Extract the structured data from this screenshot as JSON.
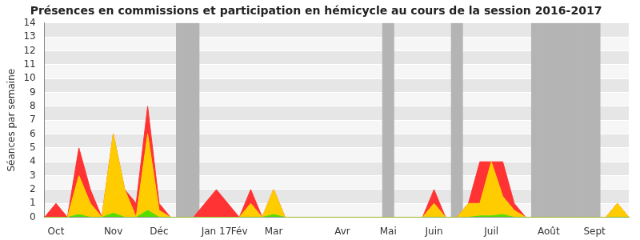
{
  "chart_data": {
    "type": "area",
    "title": "Présences en commissions et participation en hémicycle au cours de la session 2016-2017",
    "y_label": "Séances par semaine",
    "categories": [
      null,
      "Oct",
      null,
      null,
      null,
      null,
      "Nov",
      null,
      null,
      null,
      "Déc",
      null,
      null,
      null,
      null,
      "Jan 17",
      null,
      "Fév",
      null,
      null,
      "Mar",
      null,
      null,
      null,
      null,
      null,
      "Avr",
      null,
      null,
      null,
      "Mai",
      null,
      null,
      null,
      "Juin",
      null,
      null,
      null,
      null,
      "Juil",
      null,
      null,
      null,
      null,
      "Août",
      null,
      null,
      null,
      "Sept",
      null,
      null,
      null
    ],
    "series": [
      {
        "color": "#55dd00",
        "values": [
          0,
          0,
          0,
          0.2,
          0,
          0,
          0.3,
          0,
          0,
          0.5,
          0,
          0,
          0,
          0,
          0,
          0,
          0,
          0,
          0,
          0,
          0.2,
          0,
          0,
          0,
          0,
          0,
          0,
          0,
          0,
          0,
          0,
          0,
          0,
          0,
          0,
          0,
          0,
          0,
          0.1,
          0.1,
          0.2,
          0,
          0,
          0,
          0,
          0,
          0,
          0,
          0,
          0,
          0,
          0
        ]
      },
      {
        "color": "#ffcc00",
        "values": [
          0,
          0,
          0,
          2.8,
          1,
          0,
          5.7,
          2,
          0,
          5.5,
          0.5,
          0,
          0,
          0,
          0,
          0,
          0,
          0,
          1,
          0,
          1.8,
          0,
          0,
          0,
          0,
          0,
          0,
          0,
          0,
          0,
          0,
          0,
          0,
          0,
          1,
          0,
          0,
          1,
          0.9,
          3.9,
          1.3,
          0.5,
          0,
          0,
          0,
          0,
          0,
          0,
          0,
          0,
          1,
          0
        ]
      },
      {
        "color": "#ff3333",
        "values": [
          0,
          1,
          0,
          2,
          1,
          0,
          0,
          0,
          1,
          2,
          0.5,
          0,
          0,
          0,
          1,
          2,
          1,
          0,
          1,
          0,
          0,
          0,
          0,
          0,
          0,
          0,
          0,
          0,
          0,
          0,
          0,
          0,
          0,
          0,
          1,
          0,
          0,
          0,
          3,
          0,
          2.5,
          0.5,
          0,
          0,
          0,
          0,
          0,
          0,
          0,
          0,
          0,
          0
        ]
      },
      {
        "type": "bar",
        "color": "#b4b4b4",
        "values": [
          null,
          null,
          null,
          null,
          null,
          null,
          null,
          null,
          null,
          null,
          null,
          null,
          14,
          14,
          null,
          null,
          null,
          null,
          null,
          null,
          null,
          null,
          null,
          null,
          null,
          null,
          null,
          null,
          null,
          null,
          14,
          null,
          null,
          null,
          null,
          null,
          14,
          null,
          null,
          null,
          null,
          null,
          null,
          14,
          14,
          14,
          14,
          14,
          14,
          null,
          null,
          null
        ]
      }
    ],
    "ylim": [
      0,
      14
    ],
    "yticks": [
      0,
      1,
      2,
      3,
      4,
      5,
      6,
      7,
      8,
      9,
      10,
      11,
      12,
      13,
      14
    ],
    "stacked": true,
    "grid": true
  }
}
